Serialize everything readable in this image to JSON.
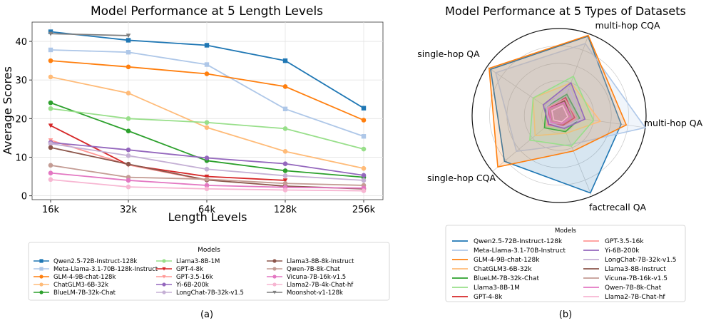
{
  "chart_data": [
    {
      "type": "line",
      "title": "Model Performance at 5 Length Levels",
      "xlabel": "Length Levels",
      "ylabel": "Average Scores",
      "categories": [
        "16k",
        "32k",
        "64k",
        "128k",
        "256k"
      ],
      "yticks": [
        0,
        10,
        20,
        30,
        40
      ],
      "ylim": [
        -1,
        45
      ],
      "grid": true,
      "legend_title": "Models",
      "caption": "(a)",
      "series": [
        {
          "name": "Qwen2.5-72B-Instruct-128k",
          "color": "#1f77b4",
          "marker": "square",
          "values": [
            42.5,
            40.3,
            39.0,
            35.0,
            22.7
          ]
        },
        {
          "name": "Meta-Llama-3.1-70B-128k-Instruct",
          "color": "#aec7e8",
          "marker": "square",
          "values": [
            37.8,
            37.2,
            34.0,
            22.5,
            15.4
          ]
        },
        {
          "name": "GLM-4-9B-chat-128k",
          "color": "#ff7f0e",
          "marker": "circle",
          "values": [
            35.0,
            33.4,
            31.6,
            28.3,
            19.6
          ]
        },
        {
          "name": "ChatGLM3-6B-32k",
          "color": "#ffbb78",
          "marker": "circle",
          "values": [
            30.8,
            26.6,
            17.7,
            11.5,
            7.1
          ]
        },
        {
          "name": "BlueLM-7B-32k-Chat",
          "color": "#2ca02c",
          "marker": "circle",
          "values": [
            24.1,
            16.8,
            9.1,
            6.5,
            4.8
          ]
        },
        {
          "name": "Llama3-8B-1M",
          "color": "#98df8a",
          "marker": "circle",
          "values": [
            22.6,
            20.0,
            19.0,
            17.4,
            12.1
          ]
        },
        {
          "name": "GPT-4-8k",
          "color": "#d62728",
          "marker": "triangle-down",
          "values": [
            18.2,
            8.0,
            5.0,
            4.0,
            null
          ]
        },
        {
          "name": "GPT-3.5-16k",
          "color": "#ff9896",
          "marker": "triangle-down",
          "values": [
            14.4,
            8.0,
            4.0,
            null,
            null
          ]
        },
        {
          "name": "Yi-6B-200k",
          "color": "#9467bd",
          "marker": "circle",
          "values": [
            13.8,
            11.9,
            9.8,
            8.3,
            5.3
          ]
        },
        {
          "name": "LongChat-7B-32k-v1.5",
          "color": "#c5b0d5",
          "marker": "circle",
          "values": [
            13.5,
            10.4,
            6.9,
            5.2,
            4.0
          ]
        },
        {
          "name": "Llama3-8B-8k-Instruct",
          "color": "#8c564b",
          "marker": "circle",
          "values": [
            12.5,
            8.2,
            4.1,
            2.5,
            1.8
          ]
        },
        {
          "name": "Qwen-7B-8k-Chat",
          "color": "#c49c94",
          "marker": "circle",
          "values": [
            7.9,
            4.8,
            4.3,
            3.2,
            2.7
          ]
        },
        {
          "name": "Vicuna-7B-16k-v1.5",
          "color": "#e377c2",
          "marker": "circle",
          "values": [
            5.9,
            4.0,
            2.7,
            2.2,
            2.0
          ]
        },
        {
          "name": "Llama2-7B-4k-Chat-hf",
          "color": "#f7b6d2",
          "marker": "circle",
          "values": [
            4.2,
            2.3,
            1.8,
            1.5,
            1.3
          ]
        },
        {
          "name": "Moonshot-v1-128k",
          "color": "#7f7f7f",
          "marker": "triangle-down",
          "values": [
            42.0,
            41.5,
            null,
            null,
            null
          ]
        }
      ]
    },
    {
      "type": "radar",
      "title": "Model Performance at 5 Types of Datasets",
      "axes": [
        "multi-hop CQA",
        "multi-hop QA",
        "factrecall QA",
        "single-hop CQA",
        "single-hop QA"
      ],
      "rmax": 100,
      "rings": [
        20,
        40,
        60,
        80,
        100
      ],
      "legend_title": "Models",
      "caption": "(b)",
      "series": [
        {
          "name": "Qwen2.5-72B-Instruct-128k",
          "color": "#1f77b4",
          "values": [
            97,
            72,
            96,
            82,
            95
          ]
        },
        {
          "name": "Meta-Llama-3.1-70B-Instruct",
          "color": "#aec7e8",
          "values": [
            88,
            100,
            36,
            64,
            88
          ]
        },
        {
          "name": "GLM-4-9B-chat-128k",
          "color": "#ff7f0e",
          "values": [
            98,
            78,
            44,
            92,
            97
          ]
        },
        {
          "name": "ChatGLM3-6B-32k",
          "color": "#ffbb78",
          "values": [
            40,
            48,
            22,
            36,
            36
          ]
        },
        {
          "name": "BlueLM-7B-32k-Chat",
          "color": "#2ca02c",
          "values": [
            26,
            24,
            20,
            22,
            18
          ]
        },
        {
          "name": "Llama3-8B-1M",
          "color": "#98df8a",
          "values": [
            48,
            40,
            38,
            44,
            36
          ]
        },
        {
          "name": "GPT-4-8k",
          "color": "#d62728",
          "values": [
            22,
            18,
            12,
            16,
            14
          ]
        },
        {
          "name": "GPT-3.5-16k",
          "color": "#ff9896",
          "values": [
            20,
            20,
            14,
            18,
            16
          ]
        },
        {
          "name": "Yi-6B-200k",
          "color": "#9467bd",
          "values": [
            40,
            30,
            16,
            16,
            22
          ]
        },
        {
          "name": "LongChat-7B-32k-v1.5",
          "color": "#c5b0d5",
          "values": [
            34,
            26,
            14,
            14,
            18
          ]
        },
        {
          "name": "Llama3-8B-Instruct",
          "color": "#8c564b",
          "values": [
            18,
            14,
            10,
            10,
            14
          ]
        },
        {
          "name": "Vicuna-7B-16k-v1.5",
          "color": "#c49c94",
          "values": [
            14,
            12,
            10,
            10,
            12
          ]
        },
        {
          "name": "Qwen-7B-8k-Chat",
          "color": "#e377c2",
          "values": [
            16,
            14,
            10,
            12,
            14
          ]
        },
        {
          "name": "Llama2-7B-Chat-hf",
          "color": "#f7b6d2",
          "values": [
            12,
            10,
            8,
            8,
            10
          ]
        }
      ]
    }
  ]
}
